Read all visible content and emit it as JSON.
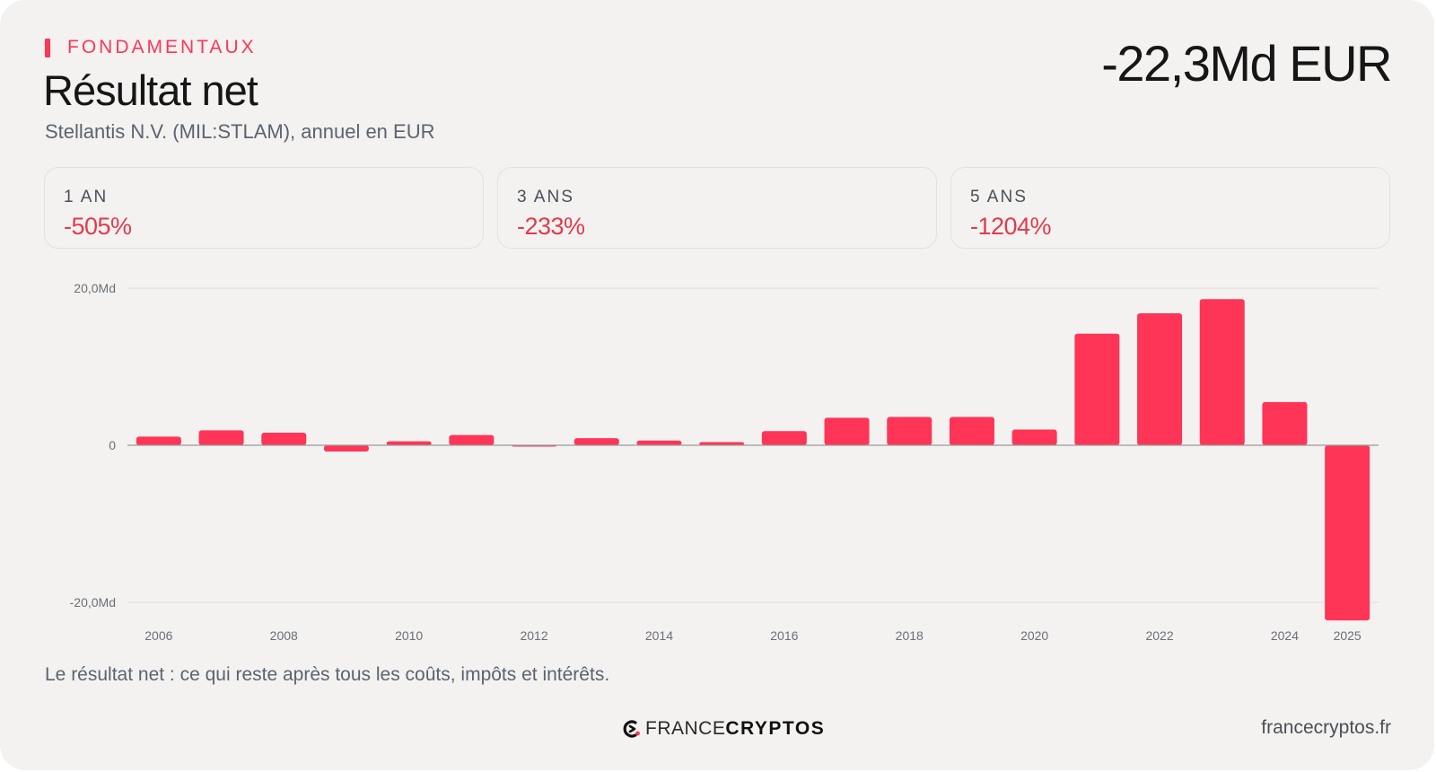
{
  "header": {
    "eyebrow": "FONDAMENTAUX",
    "title": "Résultat net",
    "subtitle": "Stellantis N.V. (MIL:STLAM), annuel en EUR",
    "current_value": "-22,3Md EUR"
  },
  "kpis": [
    {
      "label": "1 AN",
      "value": "-505%"
    },
    {
      "label": "3 ANS",
      "value": "-233%"
    },
    {
      "label": "5 ANS",
      "value": "-1204%"
    }
  ],
  "footnote": "Le résultat net : ce qui reste après tous les coûts, impôts et intérêts.",
  "brand": {
    "france": "FRANCE",
    "cryptos": "CRYPTOS"
  },
  "site": "francecryptos.fr",
  "colors": {
    "bar": "#ff3557",
    "accent": "#ff3557",
    "negative_text": "#e23a4e",
    "grid": "#dcdcdc",
    "zero_line": "#9a9a9a"
  },
  "chart_data": {
    "type": "bar",
    "categories": [
      "2006",
      "2007",
      "2008",
      "2009",
      "2010",
      "2011",
      "2012",
      "2013",
      "2014",
      "2015",
      "2016",
      "2017",
      "2018",
      "2019",
      "2020",
      "2021",
      "2022",
      "2023",
      "2024",
      "2025"
    ],
    "values": [
      1.1,
      1.9,
      1.6,
      -0.8,
      0.5,
      1.3,
      -0.1,
      0.9,
      0.6,
      0.4,
      1.8,
      3.5,
      3.6,
      3.6,
      2.0,
      14.2,
      16.8,
      18.6,
      5.5,
      -22.3
    ],
    "x_tick_labels": [
      "2006",
      "2008",
      "2010",
      "2012",
      "2014",
      "2016",
      "2018",
      "2020",
      "2022",
      "2024",
      "2025"
    ],
    "y_ticks": [
      20,
      0,
      -20
    ],
    "y_tick_labels": [
      "20,0Md",
      "0",
      "-20,0Md"
    ],
    "ylim": [
      -22.3,
      20
    ],
    "unit": "Md EUR",
    "grid": true,
    "legend": "none"
  }
}
